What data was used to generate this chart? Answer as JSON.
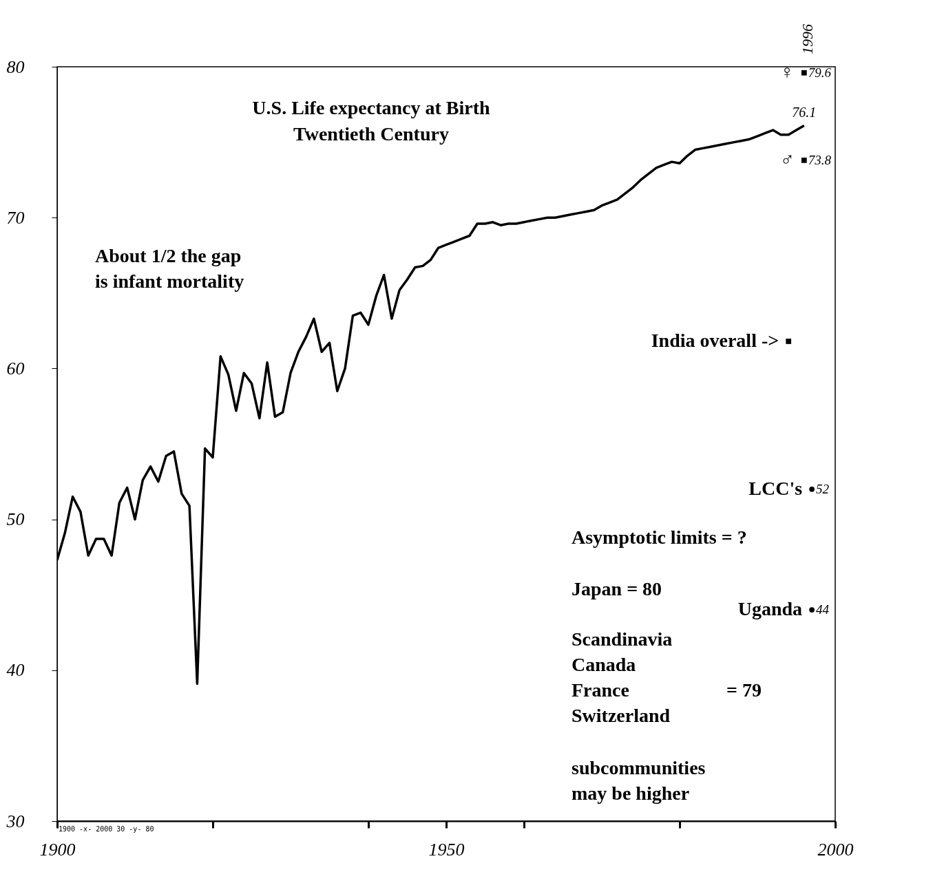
{
  "chart_data": {
    "type": "line",
    "title": "U.S. Life expectancy at Birth",
    "subtitle": "Twentieth Century",
    "x": [
      1900,
      1901,
      1902,
      1903,
      1904,
      1905,
      1906,
      1907,
      1908,
      1909,
      1910,
      1911,
      1912,
      1913,
      1914,
      1915,
      1916,
      1917,
      1918,
      1919,
      1920,
      1921,
      1922,
      1923,
      1924,
      1925,
      1926,
      1927,
      1928,
      1929,
      1930,
      1931,
      1932,
      1933,
      1934,
      1935,
      1936,
      1937,
      1938,
      1939,
      1940,
      1941,
      1942,
      1943,
      1944,
      1945,
      1946,
      1947,
      1948,
      1949,
      1950,
      1951,
      1952,
      1953,
      1954,
      1955,
      1956,
      1957,
      1958,
      1959,
      1960,
      1961,
      1962,
      1963,
      1964,
      1965,
      1966,
      1967,
      1968,
      1969,
      1970,
      1971,
      1972,
      1973,
      1974,
      1975,
      1976,
      1977,
      1978,
      1979,
      1980,
      1981,
      1982,
      1983,
      1984,
      1985,
      1986,
      1987,
      1988,
      1989,
      1990,
      1991,
      1992,
      1993,
      1994,
      1995,
      1996
    ],
    "xlim": [
      1900,
      2000
    ],
    "xticks": [
      {
        "value": 1900,
        "label": "1900"
      },
      {
        "value": 1920,
        "label": null
      },
      {
        "value": 1940,
        "label": null
      },
      1950,
      {
        "value": 1960,
        "label": null
      },
      {
        "value": 1980,
        "label": null
      },
      2000
    ],
    "ylim": [
      30,
      80
    ],
    "yticks": [
      30,
      40,
      50,
      60,
      70,
      80
    ],
    "series": [
      {
        "type": "line",
        "color": "#000000",
        "values": [
          47.3,
          49.1,
          51.5,
          50.5,
          47.6,
          48.7,
          48.7,
          47.6,
          51.1,
          52.1,
          50.0,
          52.6,
          53.5,
          52.5,
          54.2,
          54.5,
          51.7,
          50.9,
          39.1,
          54.7,
          54.1,
          60.8,
          59.6,
          57.2,
          59.7,
          59.0,
          56.7,
          60.4,
          56.8,
          57.1,
          59.7,
          61.1,
          62.1,
          63.3,
          61.1,
          61.7,
          58.5,
          60.0,
          63.5,
          63.7,
          62.9,
          64.8,
          66.2,
          63.3,
          65.2,
          65.9,
          66.7,
          66.8,
          67.2,
          68.0,
          68.2,
          68.4,
          68.6,
          68.8,
          69.6,
          69.6,
          69.7,
          69.5,
          69.6,
          69.6,
          69.7,
          69.8,
          69.9,
          70.0,
          70.0,
          70.1,
          70.2,
          70.3,
          70.4,
          70.5,
          70.8,
          71.0,
          71.2,
          71.6,
          72.0,
          72.5,
          72.9,
          73.3,
          73.5,
          73.7,
          73.6,
          74.1,
          74.5,
          74.6,
          74.7,
          74.8,
          74.9,
          75.0,
          75.1,
          75.2,
          75.4,
          75.6,
          75.8,
          75.5,
          75.5,
          75.8,
          76.1
        ]
      },
      {
        "type": "scatter",
        "name": "♀",
        "color": "#000000",
        "marker": "square",
        "x": [
          1996
        ],
        "values": [
          79.6
        ],
        "value_labels": [
          "79.6"
        ]
      },
      {
        "type": "scatter",
        "name": "♂",
        "color": "#000000",
        "marker": "square",
        "x": [
          1996
        ],
        "values": [
          73.8
        ],
        "value_labels": [
          "73.8"
        ]
      },
      {
        "type": "scatter",
        "name": "India overall ->",
        "color": "#000000",
        "marker": "square",
        "x": [
          1994
        ],
        "values": [
          61.8
        ]
      },
      {
        "type": "scatter",
        "name": "LCC's",
        "color": "#000000",
        "marker": "circle",
        "x": [
          1997
        ],
        "values": [
          52
        ],
        "value_labels": [
          "52"
        ]
      },
      {
        "type": "scatter",
        "name": "Uganda",
        "color": "#000000",
        "marker": "circle",
        "x": [
          1997
        ],
        "values": [
          44
        ],
        "value_labels": [
          "44"
        ]
      }
    ],
    "annotations": [
      "About 1/2 the gap\nis infant mortality",
      "Asymptotic limits = ?",
      "Japan = 80",
      "Scandinavia\nCanada\nFrance\nSwitzerland",
      "= 79",
      "subcommunities\nmay be higher",
      "1900 -x- 2000  30 -y- 80",
      "1996",
      {
        "text": "76.1",
        "x": 1996,
        "y": 76.1
      }
    ]
  }
}
